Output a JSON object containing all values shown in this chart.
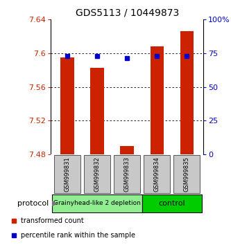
{
  "title": "GDS5113 / 10449873",
  "samples": [
    "GSM999831",
    "GSM999832",
    "GSM999833",
    "GSM999834",
    "GSM999835"
  ],
  "red_bar_tops": [
    7.595,
    7.583,
    7.49,
    7.608,
    7.626
  ],
  "blue_squares": [
    7.597,
    7.597,
    7.594,
    7.597,
    7.597
  ],
  "bar_bottom": 7.48,
  "ylim": [
    7.48,
    7.64
  ],
  "yticks": [
    7.48,
    7.52,
    7.56,
    7.6,
    7.64
  ],
  "ytick_labels": [
    "7.48",
    "7.52",
    "7.56",
    "7.6",
    "7.64"
  ],
  "right_yticks": [
    0,
    25,
    50,
    75,
    100
  ],
  "right_ytick_labels": [
    "0",
    "25",
    "50",
    "75",
    "100%"
  ],
  "groups": [
    {
      "label": "Grainyhead-like 2 depletion",
      "indices": [
        0,
        1,
        2
      ],
      "color": "#90EE90"
    },
    {
      "label": "control",
      "indices": [
        3,
        4
      ],
      "color": "#00CC00"
    }
  ],
  "protocol_label": "protocol",
  "legend_red": "transformed count",
  "legend_blue": "percentile rank within the sample",
  "bar_color": "#CC2200",
  "blue_color": "#0000CC",
  "title_fontsize": 10,
  "axis_label_color_left": "#CC2200",
  "axis_label_color_right": "#0000CC",
  "background_color": "#ffffff",
  "plot_bg": "#ffffff",
  "grid_color": "#000000",
  "xlabel_area_color": "#C8C8C8",
  "bar_width": 0.45
}
